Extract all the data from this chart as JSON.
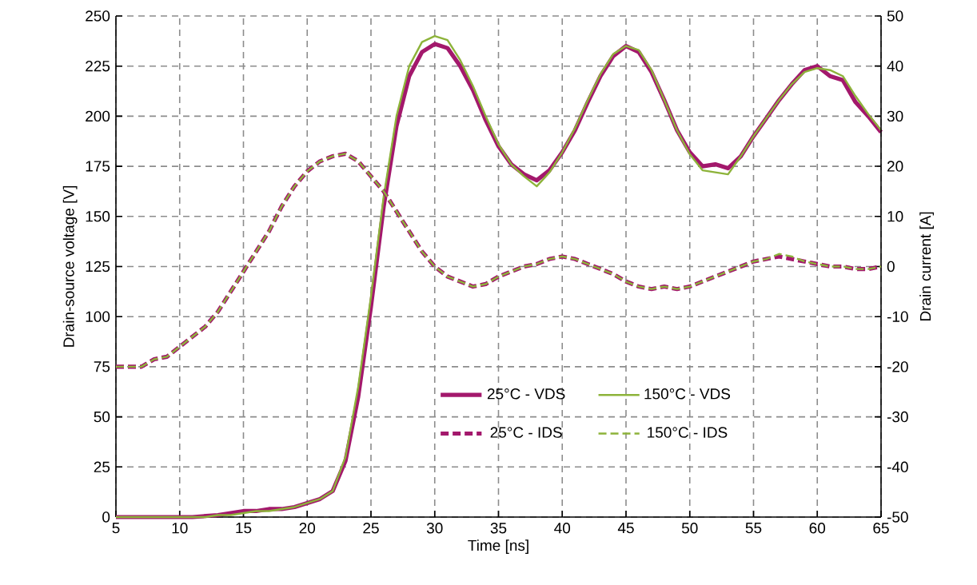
{
  "chart_data": {
    "type": "line",
    "xlabel": "Time [ns]",
    "ylabel": "Drain-source voltage [V]",
    "y2label": "Drain current [A]",
    "xlim": [
      5,
      65
    ],
    "xticks": [
      5,
      10,
      15,
      20,
      25,
      30,
      35,
      40,
      45,
      50,
      55,
      60,
      65
    ],
    "ylim": [
      0,
      250
    ],
    "yticks": [
      0,
      25,
      50,
      75,
      100,
      125,
      150,
      175,
      200,
      225,
      250
    ],
    "y2lim": [
      -50,
      50
    ],
    "y2ticks": [
      -50,
      -40,
      -30,
      -20,
      -10,
      0,
      10,
      20,
      30,
      40,
      50
    ],
    "grid": true,
    "legend": "bottom right",
    "marker": "none",
    "x": [
      5,
      6,
      7,
      8,
      9,
      10,
      11,
      12,
      13,
      14,
      15,
      16,
      17,
      18,
      19,
      20,
      21,
      22,
      23,
      24,
      25,
      26,
      27,
      28,
      29,
      30,
      31,
      32,
      33,
      34,
      35,
      36,
      37,
      38,
      39,
      40,
      41,
      42,
      43,
      44,
      45,
      46,
      47,
      48,
      49,
      50,
      51,
      52,
      53,
      54,
      55,
      56,
      57,
      58,
      59,
      60,
      61,
      62,
      63,
      64,
      65
    ],
    "series": [
      {
        "name": "25°C - VDS",
        "color": "#a3186c",
        "line_style": "solid",
        "values": [
          0,
          0,
          0,
          0,
          0,
          0,
          0,
          0.5,
          1,
          2,
          3,
          3,
          4,
          4,
          5,
          7,
          9,
          13,
          28,
          60,
          105,
          155,
          195,
          220,
          232,
          236,
          234,
          225,
          213,
          198,
          185,
          176,
          171,
          168,
          173,
          182,
          193,
          207,
          220,
          230,
          235,
          232,
          222,
          208,
          193,
          182,
          175,
          176,
          174,
          180,
          190,
          199,
          208,
          216,
          223,
          225,
          220,
          218,
          207,
          200,
          192
        ]
      },
      {
        "name": "150°C - VDS",
        "color": "#8db33a",
        "line_style": "solid",
        "values": [
          0,
          0,
          0,
          0,
          0,
          0,
          0,
          0,
          1,
          1,
          2,
          3,
          3,
          4,
          5,
          7,
          9,
          13,
          30,
          65,
          110,
          160,
          200,
          225,
          237,
          240,
          238,
          228,
          215,
          200,
          186,
          176,
          170,
          165,
          172,
          182,
          194,
          208,
          221,
          231,
          235,
          233,
          223,
          208,
          193,
          181,
          173,
          172,
          171,
          180,
          190,
          199,
          208,
          216,
          222,
          224,
          223,
          220,
          210,
          201,
          193
        ]
      },
      {
        "name": "25°C - IDS",
        "color": "#a3186c",
        "line_style": "dashed",
        "axis": "y2",
        "values": [
          -20,
          -20,
          -20,
          -18.5,
          -18,
          -16,
          -14,
          -12,
          -9,
          -5,
          -1,
          3,
          7,
          12,
          16,
          19,
          21,
          22,
          22.5,
          21,
          18,
          15,
          11,
          7,
          3,
          0,
          -2,
          -3,
          -4,
          -3.5,
          -2,
          -1,
          0,
          0.5,
          1.5,
          2,
          1.5,
          0.5,
          -0.5,
          -1.5,
          -3,
          -4,
          -4.5,
          -4,
          -4.5,
          -4,
          -3,
          -2,
          -1,
          0,
          1,
          1.5,
          2,
          1.5,
          1,
          0.5,
          0,
          0,
          -0.5,
          -0.5,
          0
        ]
      },
      {
        "name": "150°C - IDS",
        "color": "#8db33a",
        "line_style": "dashed",
        "axis": "y2",
        "values": [
          -20,
          -20,
          -20,
          -18.5,
          -18,
          -16,
          -14,
          -12,
          -9,
          -5,
          -1,
          3,
          7,
          12,
          16,
          19,
          21,
          22,
          22.5,
          21,
          18,
          15,
          11,
          7,
          3,
          0,
          -2,
          -3,
          -4,
          -3.5,
          -2,
          -1,
          0,
          0.5,
          1.5,
          2,
          1.5,
          0.5,
          -0.5,
          -1.5,
          -3,
          -4,
          -4.5,
          -4,
          -4.5,
          -4,
          -3,
          -2,
          -1,
          0,
          1,
          1.5,
          2.5,
          2,
          1,
          0.5,
          0,
          0,
          -0.5,
          -0.5,
          0
        ]
      }
    ]
  }
}
